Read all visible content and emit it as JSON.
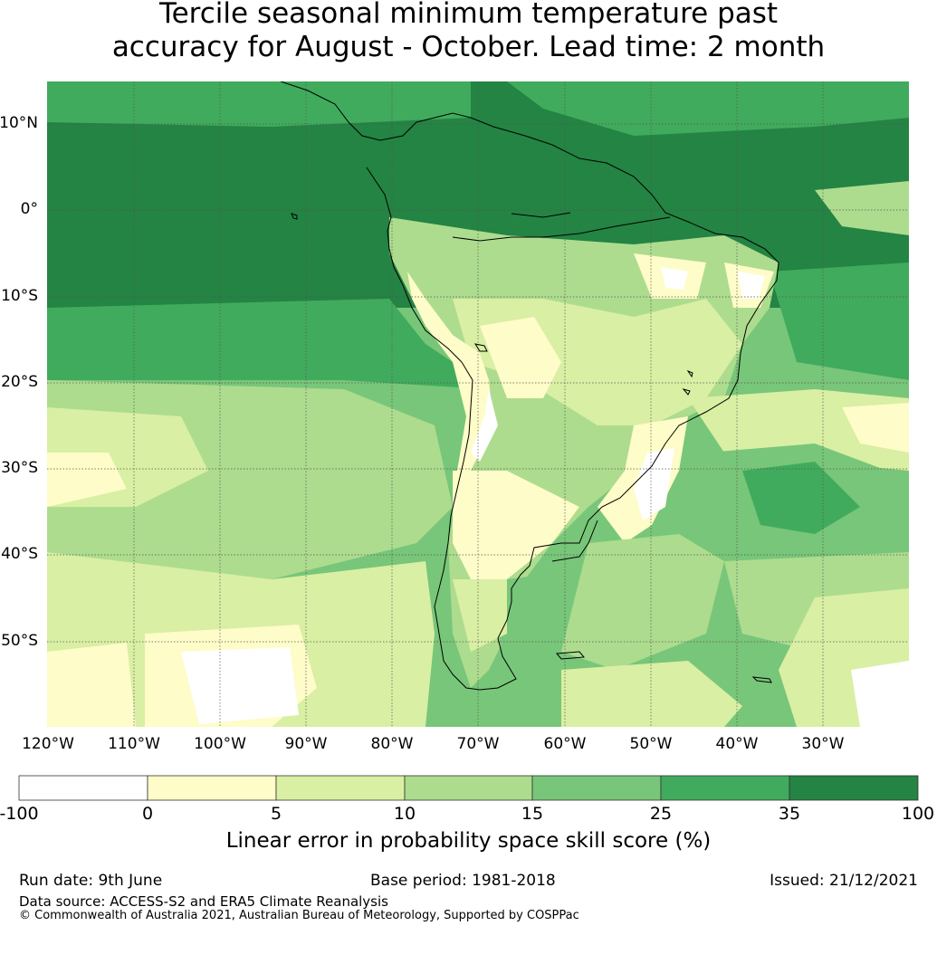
{
  "title": {
    "line1": "Tercile seasonal minimum temperature past",
    "line2": "accuracy for August - October. Lead time: 2 month"
  },
  "map": {
    "lat_labels": [
      "10°N",
      "0°",
      "10°S",
      "20°S",
      "30°S",
      "40°S",
      "50°S"
    ],
    "lon_labels": [
      "120°W",
      "110°W",
      "100°W",
      "90°W",
      "80°W",
      "70°W",
      "60°W",
      "50°W",
      "40°W",
      "30°W"
    ],
    "lon_range": [
      -125,
      -25
    ],
    "lat_range": [
      -60,
      15
    ],
    "region": "South America",
    "gridlines": true
  },
  "colorbar": {
    "ticks": [
      "-100",
      "0",
      "5",
      "10",
      "15",
      "25",
      "35",
      "100"
    ],
    "bins": [
      {
        "from": -100,
        "to": 0,
        "color": "#ffffff"
      },
      {
        "from": 0,
        "to": 5,
        "color": "#fefcc8"
      },
      {
        "from": 5,
        "to": 10,
        "color": "#d9efa3"
      },
      {
        "from": 10,
        "to": 15,
        "color": "#addc8e"
      },
      {
        "from": 15,
        "to": 25,
        "color": "#78c679"
      },
      {
        "from": 25,
        "to": 35,
        "color": "#41ab5d"
      },
      {
        "from": 35,
        "to": 100,
        "color": "#238443"
      }
    ],
    "label": "Linear error in probability space skill score (%)"
  },
  "footer": {
    "run_date": "Run date: 9th June",
    "base_period": "Base period: 1981-2018",
    "issued": "Issued: 21/12/2021",
    "data_source": "Data source: ACCESS-S2 and ERA5 Climate Reanalysis",
    "copyright": "© Commonwealth of Australia 2021, Australian Bureau of Meteorology, Supported by COSPPac"
  }
}
